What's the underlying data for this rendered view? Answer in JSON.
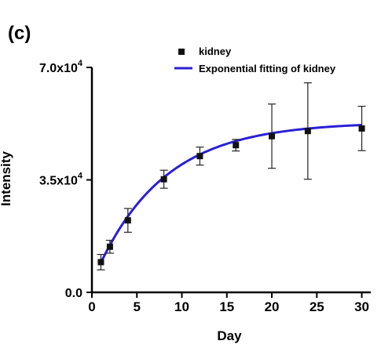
{
  "chart_data": {
    "type": "scatter",
    "panel_label": "(c)",
    "xlabel": "Day",
    "ylabel": "Intensity",
    "xlim": [
      0,
      31
    ],
    "ylim": [
      0,
      70000
    ],
    "x_ticks": [
      0,
      5,
      10,
      15,
      20,
      25,
      30
    ],
    "x_tick_labels": [
      "0",
      "5",
      "10",
      "15",
      "20",
      "25",
      "30"
    ],
    "y_ticks": [
      0,
      35000,
      70000
    ],
    "y_tick_labels": [
      {
        "mantissa": "0.0",
        "exponent": ""
      },
      {
        "mantissa": "3.5x10",
        "exponent": "4"
      },
      {
        "mantissa": "7.0x10",
        "exponent": "4"
      }
    ],
    "grid": false,
    "legend_position": "top-right",
    "series": [
      {
        "name": "kidney",
        "kind": "points",
        "color": "#111111",
        "x": [
          1,
          2,
          4,
          8,
          12,
          16,
          20,
          24,
          30
        ],
        "y": [
          9400,
          14200,
          22400,
          35200,
          42400,
          45800,
          48600,
          50200,
          51000
        ],
        "err": [
          2400,
          2000,
          3700,
          2800,
          2800,
          1800,
          10000,
          15000,
          6900
        ]
      },
      {
        "name": "Exponential fitting of kidney",
        "kind": "line",
        "color": "#2b1fd6",
        "fit": {
          "A": 53000,
          "B": 50000,
          "tau": 7.5
        }
      }
    ]
  }
}
